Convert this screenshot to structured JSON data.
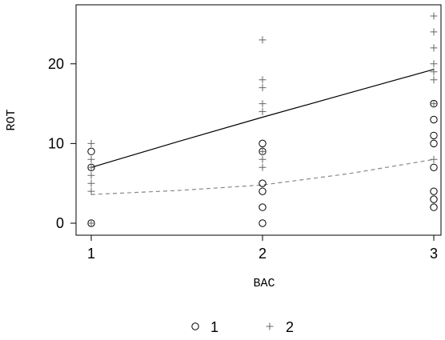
{
  "chart_data": {
    "type": "scatter",
    "xlabel": "BAC",
    "ylabel": "ROT",
    "xlim": [
      1,
      3
    ],
    "ylim": [
      0,
      26
    ],
    "xticks": [
      1,
      2,
      3
    ],
    "yticks": [
      0,
      10,
      20
    ],
    "grid": false,
    "legend_position": "bottom",
    "series": [
      {
        "name": "1",
        "marker": "circle",
        "color": "#000000",
        "points": [
          [
            1,
            0
          ],
          [
            1,
            7
          ],
          [
            1,
            9
          ],
          [
            2,
            0
          ],
          [
            2,
            2
          ],
          [
            2,
            4
          ],
          [
            2,
            5
          ],
          [
            2,
            9
          ],
          [
            2,
            10
          ],
          [
            3,
            2
          ],
          [
            3,
            3
          ],
          [
            3,
            4
          ],
          [
            3,
            7
          ],
          [
            3,
            10
          ],
          [
            3,
            11
          ],
          [
            3,
            13
          ],
          [
            3,
            15
          ]
        ]
      },
      {
        "name": "2",
        "marker": "plus",
        "color": "#666666",
        "points": [
          [
            1,
            0
          ],
          [
            1,
            4
          ],
          [
            1,
            5
          ],
          [
            1,
            6
          ],
          [
            1,
            7
          ],
          [
            1,
            8
          ],
          [
            1,
            10
          ],
          [
            2,
            7
          ],
          [
            2,
            8
          ],
          [
            2,
            9
          ],
          [
            2,
            14
          ],
          [
            2,
            15
          ],
          [
            2,
            17
          ],
          [
            2,
            18
          ],
          [
            2,
            23
          ],
          [
            3,
            8
          ],
          [
            3,
            15
          ],
          [
            3,
            18
          ],
          [
            3,
            19
          ],
          [
            3,
            20
          ],
          [
            3,
            22
          ],
          [
            3,
            24
          ],
          [
            3,
            26
          ]
        ]
      }
    ],
    "fits": [
      {
        "series": "2",
        "style": "solid",
        "color": "#000000",
        "points": [
          [
            1,
            7.0
          ],
          [
            1.5,
            10.2
          ],
          [
            2,
            13.3
          ],
          [
            2.5,
            16.3
          ],
          [
            3,
            19.3
          ]
        ]
      },
      {
        "series": "1",
        "style": "dashed",
        "color": "#888888",
        "points": [
          [
            1,
            3.6
          ],
          [
            1.5,
            4.1
          ],
          [
            2,
            4.8
          ],
          [
            2.5,
            6.2
          ],
          [
            3,
            8.0
          ]
        ]
      }
    ]
  }
}
